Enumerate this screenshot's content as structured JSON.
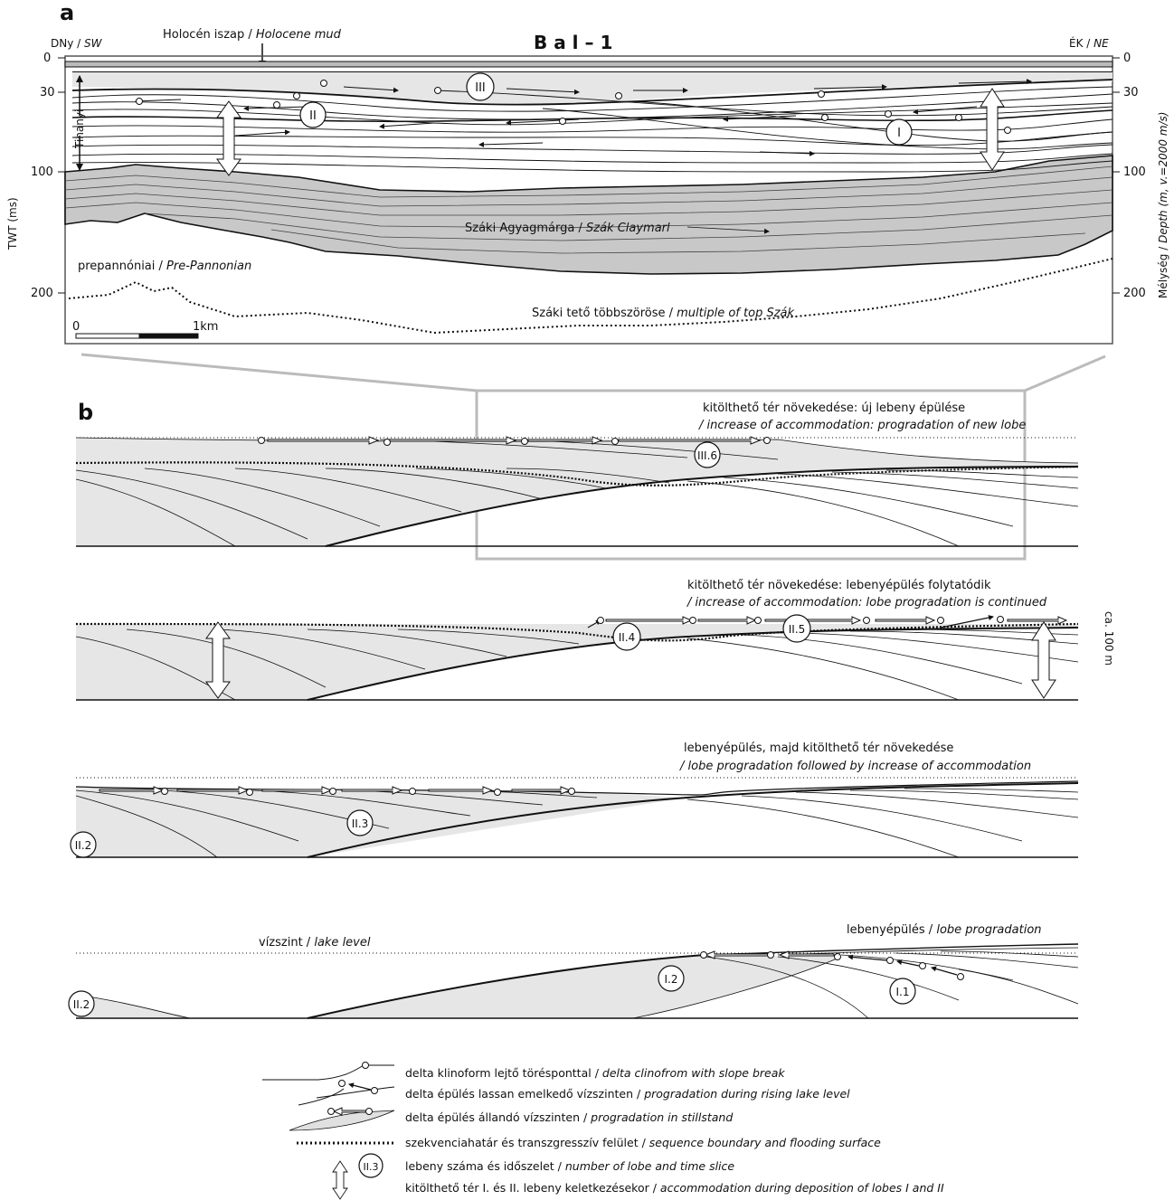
{
  "panel_a": {
    "letter": "a",
    "title": "B a l – 1",
    "left_header_hu": "DNy /",
    "left_header_en": "SW",
    "right_header_hu": "ÉK /",
    "right_header_en": "NE",
    "holocene_hu": "Holocén iszap /",
    "holocene_en": "Holocene mud",
    "left_axis_label": "TWT (ms)",
    "right_axis_label_hu": "Mélység /",
    "right_axis_label_en": "Depth (m, v.=2000 m/s)",
    "tick_labels": [
      "0",
      "30",
      "100",
      "200"
    ],
    "tihanyi": "Tihanyi",
    "lobes": [
      "III",
      "II",
      "I"
    ],
    "szak_hu": "Száki Agyagmárga /",
    "szak_en": "Szák Claymarl",
    "prepannonian_hu": "prepannóniai /",
    "prepannonian_en": "Pre-Pannonian",
    "multiple_hu": "Száki tető többszöröse /",
    "multiple_en": "multiple of top Szák",
    "scale_start": "0",
    "scale_end": "1km"
  },
  "panel_b": {
    "letter": "b",
    "stage1_hu": "kitölthető tér  növekedése:  új lebeny épülése",
    "stage1_en": "/ increase of accommodation: progradation of new lobe",
    "stage1_lobe": "III.6",
    "stage2_hu": "kitölthető tér növekedése: lebenyépülés folytatódik",
    "stage2_en": "/ increase of accommodation: lobe progradation is continued",
    "stage2_lobes": [
      "II.4",
      "II.5"
    ],
    "stage2_scale": "ca. 100 m",
    "stage3_hu": "lebenyépülés, majd kitölthető tér növekedése",
    "stage3_en": "/ lobe progradation followed by increase of accommodation",
    "stage3_lobes": [
      "II.2",
      "II.3"
    ],
    "stage4_lake_hu": "vízszint /",
    "stage4_lake_en": "lake level",
    "stage4_hu": "lebenyépülés /",
    "stage4_en": "lobe progradation",
    "stage4_lobes": [
      "II.2",
      "I.2",
      "I.1"
    ]
  },
  "legend": {
    "items": [
      {
        "hu": "delta klinoform lejtő törésponttal /",
        "en": "delta clinofrom with slope break"
      },
      {
        "hu": "delta épülés lassan emelkedő vízszinten /",
        "en": "progradation during rising lake level"
      },
      {
        "hu": "delta épülés állandó vízszinten /",
        "en": "progradation in stillstand"
      },
      {
        "hu": "szekvenciahatár és transzgresszív felület /",
        "en": "sequence boundary and flooding surface"
      },
      {
        "hu": "lebeny száma és időszelet /",
        "en": "number of lobe and time slice"
      },
      {
        "hu": "kitölthető tér I. és II. lebeny keletkezésekor /",
        "en": "accommodation during deposition of lobes I and II"
      }
    ],
    "sample_lobe": "II.3"
  }
}
